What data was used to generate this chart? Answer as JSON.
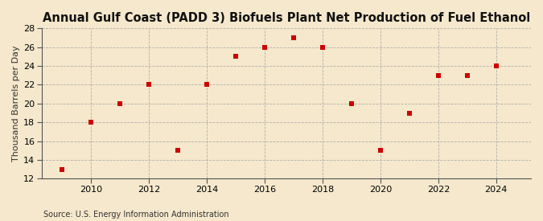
{
  "title": "Annual Gulf Coast (PADD 3) Biofuels Plant Net Production of Fuel Ethanol",
  "ylabel": "Thousand Barrels per Day",
  "source": "Source: U.S. Energy Information Administration",
  "background_color": "#f5e8cc",
  "years": [
    2009,
    2010,
    2011,
    2012,
    2013,
    2014,
    2015,
    2016,
    2017,
    2018,
    2019,
    2020,
    2021,
    2022,
    2023,
    2024
  ],
  "values": [
    13,
    18,
    20,
    22,
    15,
    22,
    25,
    26,
    27,
    26,
    20,
    15,
    19,
    23,
    23,
    24
  ],
  "xlim": [
    2008.3,
    2025.2
  ],
  "ylim": [
    12,
    28
  ],
  "yticks": [
    12,
    14,
    16,
    18,
    20,
    22,
    24,
    26,
    28
  ],
  "xticks": [
    2010,
    2012,
    2014,
    2016,
    2018,
    2020,
    2022,
    2024
  ],
  "marker_color": "#cc0000",
  "marker_size": 4,
  "grid_color": "#aaaaaa",
  "title_fontsize": 10.5,
  "ylabel_fontsize": 8,
  "tick_fontsize": 8,
  "source_fontsize": 7
}
